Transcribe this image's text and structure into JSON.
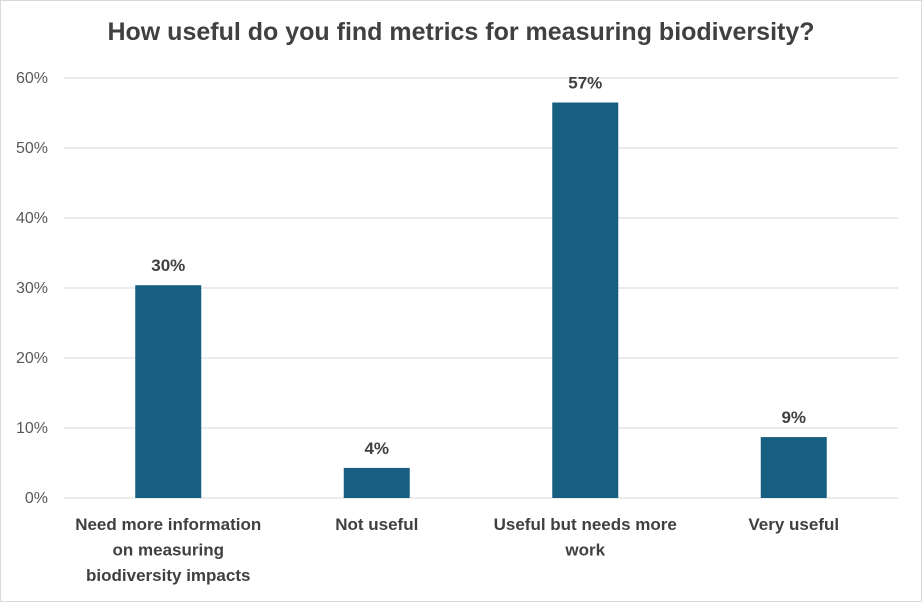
{
  "chart_data": {
    "type": "bar",
    "title": "How useful do you find metrics for measuring biodiversity?",
    "categories": [
      "Need more information on measuring biodiversity impacts",
      "Not useful",
      "Useful but needs more work",
      "Very useful"
    ],
    "category_lines": [
      [
        "Need more information",
        "on measuring",
        "biodiversity impacts"
      ],
      [
        "Not useful"
      ],
      [
        "Useful but needs more",
        "work"
      ],
      [
        "Very useful"
      ]
    ],
    "values": [
      30.4,
      4.3,
      56.5,
      8.7
    ],
    "data_labels": [
      "30%",
      "4%",
      "57%",
      "9%"
    ],
    "xlabel": "",
    "ylabel": "",
    "ylim": [
      0,
      60
    ],
    "yticks": [
      0,
      10,
      20,
      30,
      40,
      50,
      60
    ],
    "ytick_labels": [
      "0%",
      "10%",
      "20%",
      "30%",
      "40%",
      "50%",
      "60%"
    ],
    "grid": true,
    "legend": "none",
    "bar_color": "#175F80"
  }
}
